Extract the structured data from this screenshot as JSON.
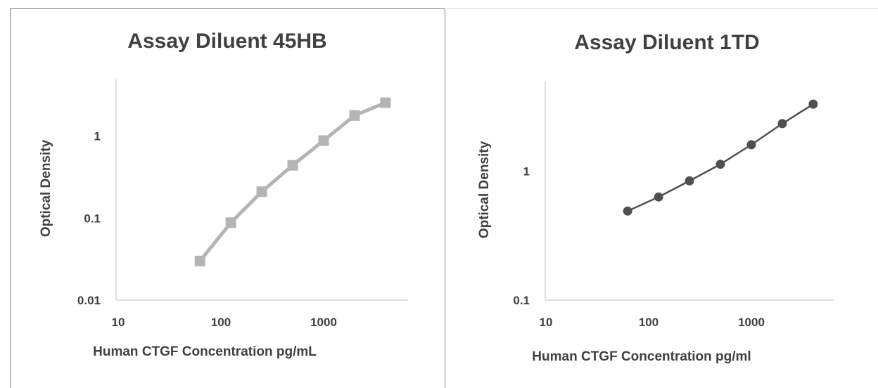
{
  "chart_data": [
    {
      "type": "line",
      "title": "Assay Diluent 45HB",
      "xlabel": "Human CTGF Concentration pg/mL",
      "ylabel": "Optical Density",
      "xscale": "log",
      "yscale": "log",
      "xlim": [
        10,
        5000
      ],
      "ylim": [
        0.01,
        5
      ],
      "xticks": [
        "10",
        "100",
        "1000"
      ],
      "yticks": [
        "0.01",
        "0.1",
        "1"
      ],
      "marker": "square",
      "color": "#b4b4b4",
      "series": [
        {
          "x": [
            62.5,
            125,
            250,
            500,
            1000,
            2000,
            4000
          ],
          "values": [
            0.03,
            0.088,
            0.21,
            0.44,
            0.88,
            1.78,
            2.55
          ]
        }
      ]
    },
    {
      "type": "line",
      "title": "Assay Diluent 1TD",
      "xlabel": "Human CTGF Concentration pg/ml",
      "ylabel": "Optical Density",
      "xscale": "log",
      "yscale": "log",
      "xlim": [
        10,
        5000
      ],
      "ylim": [
        0.1,
        5
      ],
      "xticks": [
        "10",
        "100",
        "1000"
      ],
      "yticks": [
        "0.1",
        "1"
      ],
      "marker": "circle",
      "color": "#505050",
      "series": [
        {
          "x": [
            62.5,
            125,
            250,
            500,
            1000,
            2000,
            4000
          ],
          "values": [
            0.49,
            0.63,
            0.84,
            1.13,
            1.6,
            2.33,
            3.3
          ]
        }
      ]
    }
  ]
}
